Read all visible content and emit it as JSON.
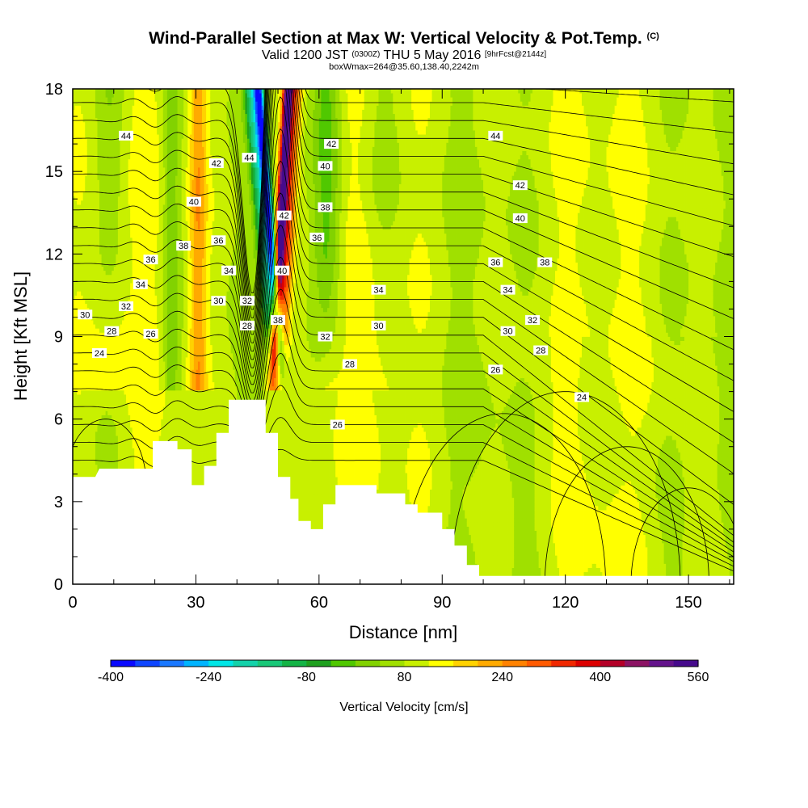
{
  "header": {
    "title_main": "Wind-Parallel Section at Max W: Vertical Velocity & Pot.Temp.",
    "title_mark": "(C)",
    "valid_prefix": "Valid 1200 JST",
    "valid_utc": "(0300Z)",
    "valid_date": "THU 5 May 2016",
    "forecast": "[9hrFcst@2144z]",
    "box_info": "boxWmax=264@35.60,138.40,2242m"
  },
  "chart_data": {
    "type": "heatmap",
    "xlabel": "Distance [nm]",
    "ylabel": "Height [Kft MSL]",
    "xlim": [
      0,
      161
    ],
    "ylim": [
      0,
      18
    ],
    "x_ticks": [
      0,
      30,
      60,
      90,
      120,
      150
    ],
    "y_ticks": [
      0,
      3,
      6,
      9,
      12,
      15,
      18
    ],
    "colorbar": {
      "label": "Vertical Velocity [cm/s]",
      "range": [
        -400,
        560
      ],
      "tick_values": [
        -400,
        -240,
        -80,
        80,
        240,
        400,
        560
      ],
      "colors": [
        "#0a0aff",
        "#0f46ff",
        "#1a78ff",
        "#00b4ff",
        "#00e6e6",
        "#14d2aa",
        "#19c878",
        "#14b446",
        "#1ea01e",
        "#50c800",
        "#82d200",
        "#a0e000",
        "#c8f000",
        "#ffff00",
        "#ffd200",
        "#ffaa00",
        "#ff8200",
        "#ff5a00",
        "#f02800",
        "#dc0000",
        "#b40028",
        "#8c1464",
        "#64148c",
        "#460a8c"
      ]
    },
    "contours": {
      "variable": "Potential Temperature",
      "labels": [
        {
          "text": "44",
          "x": 13,
          "y": 16.3
        },
        {
          "text": "42",
          "x": 35,
          "y": 15.3
        },
        {
          "text": "44",
          "x": 43,
          "y": 15.5
        },
        {
          "text": "42",
          "x": 63,
          "y": 16.0
        },
        {
          "text": "40",
          "x": 61.5,
          "y": 15.2
        },
        {
          "text": "44",
          "x": 103,
          "y": 16.3
        },
        {
          "text": "42",
          "x": 109,
          "y": 14.5
        },
        {
          "text": "40",
          "x": 29.5,
          "y": 13.9
        },
        {
          "text": "42",
          "x": 51.5,
          "y": 13.4
        },
        {
          "text": "38",
          "x": 61.5,
          "y": 13.7
        },
        {
          "text": "40",
          "x": 109,
          "y": 13.3
        },
        {
          "text": "38",
          "x": 27,
          "y": 12.3
        },
        {
          "text": "36",
          "x": 35.5,
          "y": 12.5
        },
        {
          "text": "36",
          "x": 59.5,
          "y": 12.6
        },
        {
          "text": "36",
          "x": 19,
          "y": 11.8
        },
        {
          "text": "34",
          "x": 38,
          "y": 11.4
        },
        {
          "text": "40",
          "x": 51,
          "y": 11.4
        },
        {
          "text": "36",
          "x": 103,
          "y": 11.7
        },
        {
          "text": "38",
          "x": 115,
          "y": 11.7
        },
        {
          "text": "34",
          "x": 16.5,
          "y": 10.9
        },
        {
          "text": "34",
          "x": 74.5,
          "y": 10.7
        },
        {
          "text": "34",
          "x": 106,
          "y": 10.7
        },
        {
          "text": "32",
          "x": 13,
          "y": 10.1
        },
        {
          "text": "30",
          "x": 35.5,
          "y": 10.3
        },
        {
          "text": "32",
          "x": 42.5,
          "y": 10.3
        },
        {
          "text": "30",
          "x": 3,
          "y": 9.8
        },
        {
          "text": "38",
          "x": 50,
          "y": 9.6
        },
        {
          "text": "32",
          "x": 112,
          "y": 9.6
        },
        {
          "text": "28",
          "x": 9.5,
          "y": 9.2
        },
        {
          "text": "28",
          "x": 42.5,
          "y": 9.4
        },
        {
          "text": "30",
          "x": 74.5,
          "y": 9.4
        },
        {
          "text": "30",
          "x": 106,
          "y": 9.2
        },
        {
          "text": "26",
          "x": 19,
          "y": 9.1
        },
        {
          "text": "32",
          "x": 61.5,
          "y": 9.0
        },
        {
          "text": "24",
          "x": 6.5,
          "y": 8.4
        },
        {
          "text": "28",
          "x": 114,
          "y": 8.5
        },
        {
          "text": "28",
          "x": 67.5,
          "y": 8.0
        },
        {
          "text": "26",
          "x": 103,
          "y": 7.8
        },
        {
          "text": "24",
          "x": 124,
          "y": 6.8
        },
        {
          "text": "26",
          "x": 64.5,
          "y": 5.8
        }
      ]
    }
  }
}
